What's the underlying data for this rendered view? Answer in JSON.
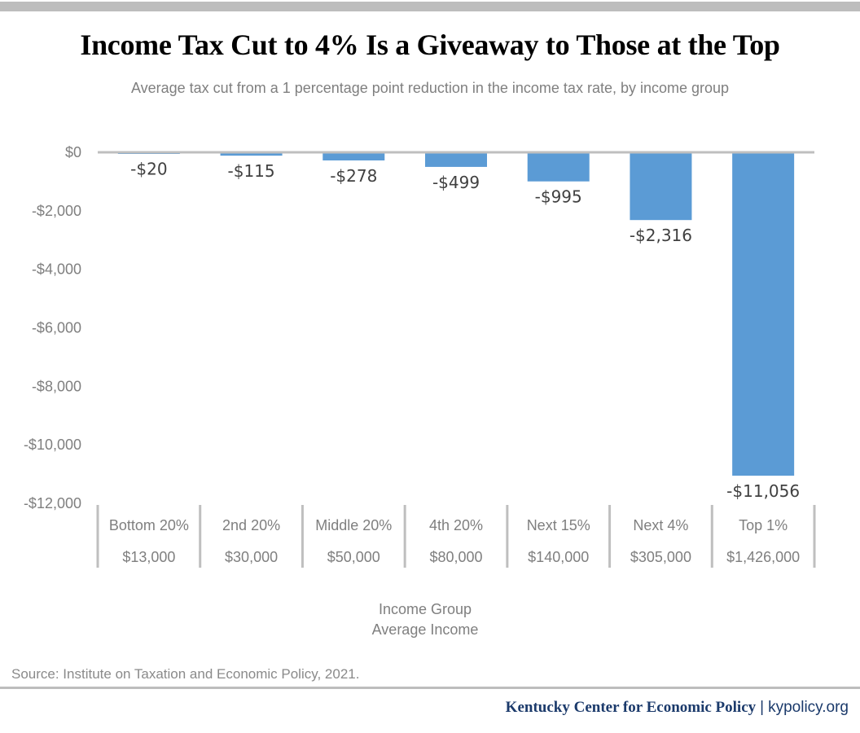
{
  "header": {
    "title": "Income Tax Cut to 4% Is a Giveaway to Those at the Top",
    "subtitle": "Average tax cut from a 1 percentage point reduction in the income tax rate, by income group"
  },
  "chart_data": {
    "type": "bar",
    "title": "Income Tax Cut to 4% Is a Giveaway to Those at the Top",
    "subtitle": "Average tax cut from a 1 percentage point reduction in the income tax rate, by income group",
    "categories": [
      "Bottom 20%",
      "2nd 20%",
      "Middle 20%",
      "4th 20%",
      "Next 15%",
      "Next 4%",
      "Top 1%"
    ],
    "category_sublabels": [
      "$13,000",
      "$30,000",
      "$50,000",
      "$80,000",
      "$140,000",
      "$305,000",
      "$1,426,000"
    ],
    "values": [
      -20,
      -115,
      -278,
      -499,
      -995,
      -2316,
      -11056
    ],
    "data_labels": [
      "-$20",
      "-$115",
      "-$278",
      "-$499",
      "-$995",
      "-$2,316",
      "-$11,056"
    ],
    "xlabel": "Income Group",
    "xlabel_line2": "Average Income",
    "ylabel": "",
    "ylim": [
      -12000,
      0
    ],
    "yticks": [
      0,
      -2000,
      -4000,
      -6000,
      -8000,
      -10000,
      -12000
    ],
    "ytick_labels": [
      "$0",
      "-$2,000",
      "-$4,000",
      "-$6,000",
      "-$8,000",
      "-$10,000",
      "-$12,000"
    ],
    "grid": false,
    "legend": "none",
    "colors": {
      "bar": "#5b9bd5",
      "zero_line": "#bfbfbf",
      "tick_text": "#7f7f7f",
      "label_text": "#404040"
    }
  },
  "footer": {
    "source": "Source: Institute on Taxation and Economic Policy, 2021.",
    "org": "Kentucky Center for Economic Policy",
    "separator": "|",
    "url": "kypolicy.org"
  }
}
